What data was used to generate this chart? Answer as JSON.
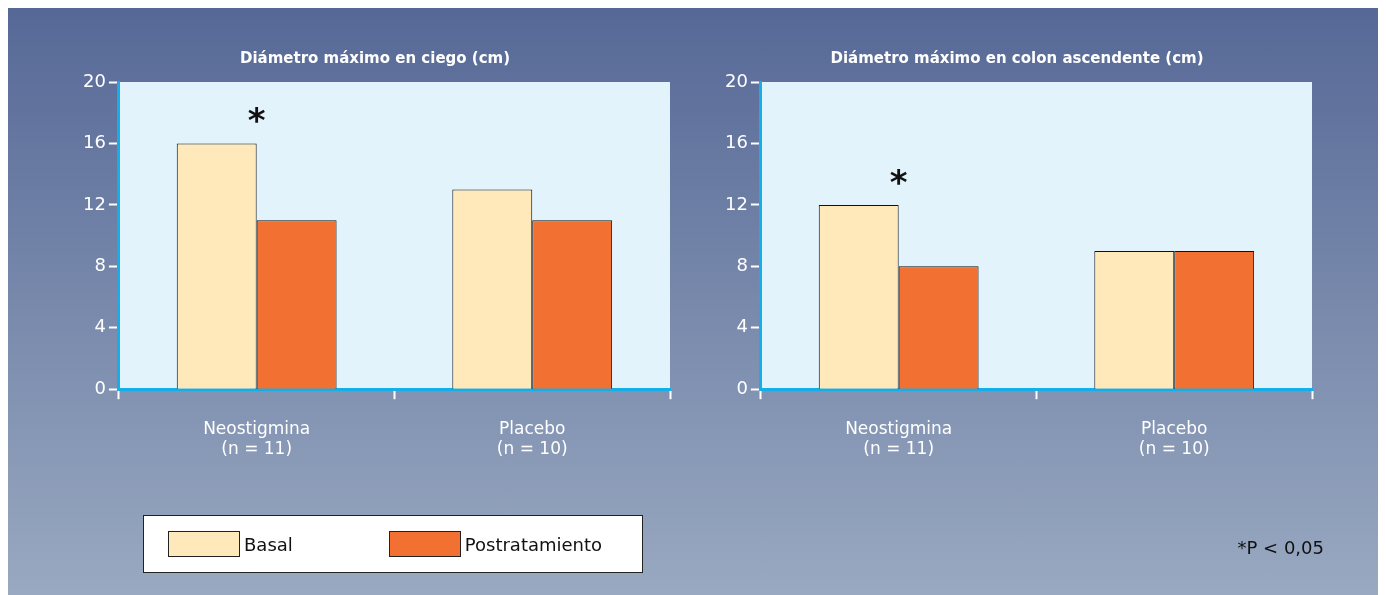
{
  "chart_data": [
    {
      "type": "bar",
      "title": "Diámetro máximo en ciego (cm)",
      "categories": [
        "Neostigmina\n(n = 11)",
        "Placebo\n(n = 10)"
      ],
      "series": [
        {
          "name": "Basal",
          "color": "#ffe9bb",
          "values": [
            16,
            13
          ]
        },
        {
          "name": "Postratamiento",
          "color": "#f27032",
          "values": [
            11,
            11
          ]
        }
      ],
      "ylim": [
        0,
        20
      ],
      "yticks": [
        0,
        4,
        8,
        12,
        16,
        20
      ],
      "grid": false,
      "legend": "bottom",
      "annotations": [
        "*"
      ]
    },
    {
      "type": "bar",
      "title": "Diámetro máximo en colon ascendente (cm)",
      "categories": [
        "Neostigmina\n(n = 11)",
        "Placebo\n(n = 10)"
      ],
      "series": [
        {
          "color": "#ffe9bb",
          "values": [
            12,
            9
          ]
        },
        {
          "color": "#f27032",
          "values": [
            8,
            9
          ]
        }
      ],
      "ylim": [
        0,
        20
      ],
      "yticks": [
        0,
        4,
        8,
        12,
        16,
        20
      ],
      "grid": false,
      "annotations": [
        "*",
        "*P < 0,05"
      ]
    }
  ]
}
